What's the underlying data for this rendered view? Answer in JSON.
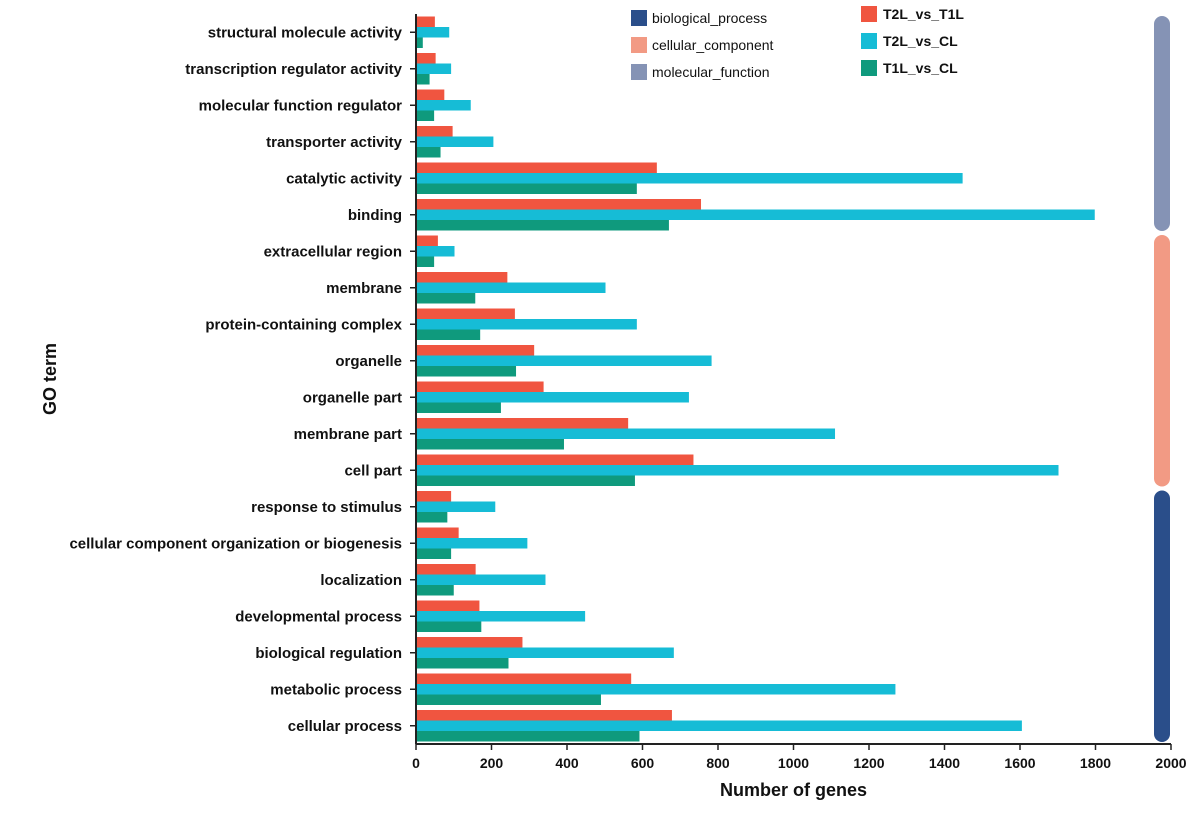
{
  "chart_data": {
    "type": "bar",
    "orientation": "horizontal",
    "xlabel": "Number of genes",
    "ylabel": "GO term",
    "xlim": [
      0,
      2000
    ],
    "xticks": [
      0,
      200,
      400,
      600,
      800,
      1000,
      1200,
      1400,
      1600,
      1800,
      2000
    ],
    "grid": false,
    "categories": [
      "structural molecule activity",
      "transcription regulator activity",
      "molecular function regulator",
      "transporter activity",
      "catalytic activity",
      "binding",
      "extracellular region",
      "membrane",
      "protein-containing complex",
      "organelle",
      "organelle part",
      "membrane part",
      "cell part",
      "response to stimulus",
      "cellular component organization or biogenesis",
      "localization",
      "developmental process",
      "biological regulation",
      "metabolic process",
      "cellular process"
    ],
    "series": [
      {
        "name": "T2L_vs_T1L",
        "color": "#f05540",
        "values": [
          50,
          52,
          75,
          97,
          638,
          755,
          58,
          242,
          262,
          313,
          338,
          562,
          735,
          93,
          113,
          158,
          168,
          282,
          570,
          678
        ]
      },
      {
        "name": "T2L_vs_CL",
        "color": "#16bcd6",
        "values": [
          88,
          93,
          145,
          205,
          1448,
          1798,
          102,
          502,
          585,
          783,
          723,
          1110,
          1702,
          210,
          295,
          343,
          448,
          683,
          1270,
          1605
        ]
      },
      {
        "name": "T1L_vs_CL",
        "color": "#0f9a7d",
        "values": [
          18,
          36,
          48,
          65,
          585,
          670,
          48,
          157,
          170,
          265,
          225,
          392,
          580,
          83,
          93,
          100,
          173,
          245,
          490,
          592
        ]
      }
    ],
    "groups": [
      {
        "name": "molecular_function",
        "color": "#8593b5",
        "categories_range": [
          0,
          5
        ]
      },
      {
        "name": "cellular_component",
        "color": "#f29a84",
        "categories_range": [
          6,
          12
        ]
      },
      {
        "name": "biological_process",
        "color": "#2a4e8a",
        "categories_range": [
          13,
          19
        ]
      }
    ],
    "group_legend": [
      "biological_process",
      "cellular_component",
      "molecular_function"
    ]
  }
}
